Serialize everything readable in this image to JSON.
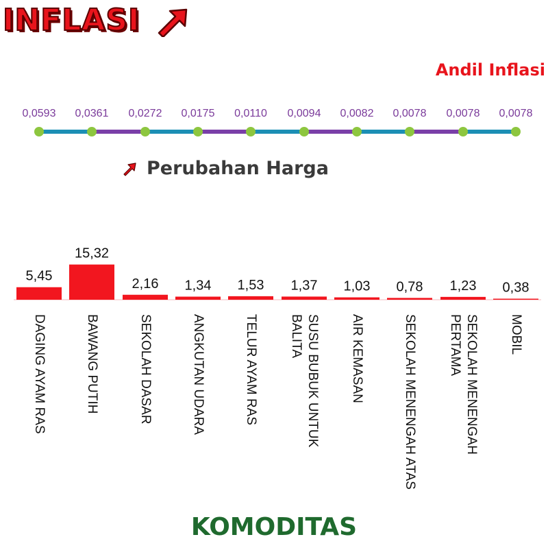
{
  "title": "INFLASI",
  "andil_title": "Andil Inflasi",
  "perubahan_title": "Perubahan Harga",
  "x_axis_title": "KOMODITAS",
  "colors": {
    "title_red": "#e8141c",
    "bar_red": "#f2161f",
    "line_teal": "#1c8fb5",
    "line_purple": "#7a3fa8",
    "marker_green": "#8dc63f",
    "axis_green": "#1f6a2e"
  },
  "icons": {
    "title": "up-right-arrow-icon",
    "perubahan": "up-right-arrow-icon"
  },
  "chart_data": [
    {
      "type": "line",
      "name": "andil-inflasi",
      "labels": [
        "0,0593",
        "0,0361",
        "0,0272",
        "0,0175",
        "0,0110",
        "0,0094",
        "0,0082",
        "0,0078",
        "0,0078",
        "0,0078"
      ],
      "values": [
        0.0593,
        0.0361,
        0.0272,
        0.0175,
        0.011,
        0.0094,
        0.0082,
        0.0078,
        0.0078,
        0.0078
      ]
    },
    {
      "type": "bar",
      "categories": [
        [
          "DAGING AYAM RAS"
        ],
        [
          "BAWANG PUTIH"
        ],
        [
          "SEKOLAH DASAR"
        ],
        [
          "ANGKUTAN UDARA"
        ],
        [
          "TELUR AYAM RAS"
        ],
        [
          "SUSU BUBUK UNTUK",
          "BALITA"
        ],
        [
          "AIR KEMASAN"
        ],
        [
          "SEKOLAH MENENGAH ATAS"
        ],
        [
          "SEKOLAH MENENGAH",
          "PERTAMA"
        ],
        [
          "MOBIL"
        ]
      ],
      "value_labels": [
        "5,45",
        "15,32",
        "2,16",
        "1,34",
        "1,53",
        "1,37",
        "1,03",
        "0,78",
        "1,23",
        "0,38"
      ],
      "values": [
        5.45,
        15.32,
        2.16,
        1.34,
        1.53,
        1.37,
        1.03,
        0.78,
        1.23,
        0.38
      ]
    }
  ]
}
